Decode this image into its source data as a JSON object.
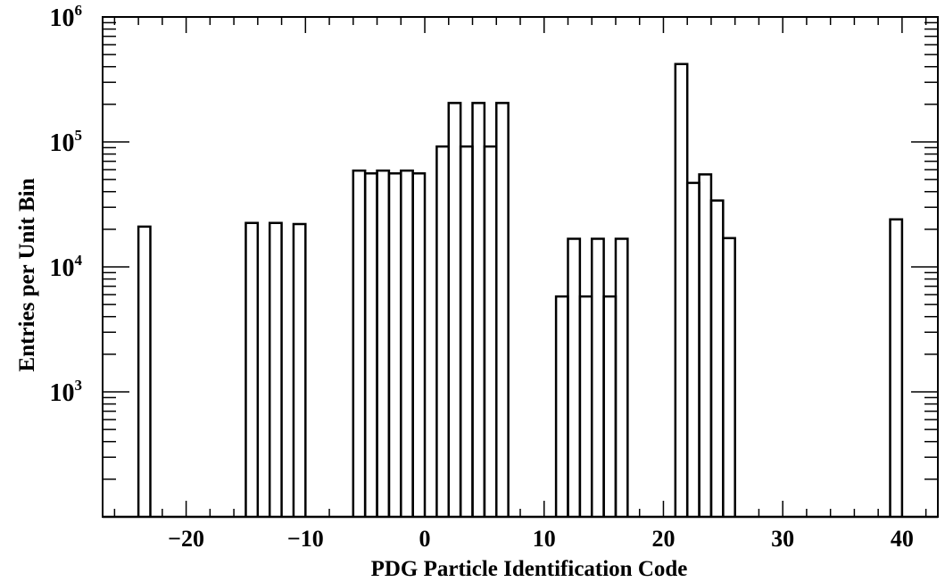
{
  "chart_data": {
    "type": "bar",
    "title": "",
    "xlabel": "PDG Particle Identification Code",
    "ylabel": "Entries per Unit Bin",
    "xlim": [
      -27,
      43
    ],
    "ylim": [
      100,
      1000000
    ],
    "yscale": "log",
    "grid": false,
    "legend": "none",
    "line_color": "#000000",
    "x_ticks": [
      {
        "value": -20,
        "label": "−20"
      },
      {
        "value": -10,
        "label": "−10"
      },
      {
        "value": 0,
        "label": "0"
      },
      {
        "value": 10,
        "label": "10"
      },
      {
        "value": 20,
        "label": "20"
      },
      {
        "value": 30,
        "label": "30"
      },
      {
        "value": 40,
        "label": "40"
      }
    ],
    "y_ticks": [
      {
        "value": 1000,
        "base": "10",
        "exp": "3"
      },
      {
        "value": 10000,
        "base": "10",
        "exp": "4"
      },
      {
        "value": 100000,
        "base": "10",
        "exp": "5"
      },
      {
        "value": 1000000,
        "base": "10",
        "exp": "6"
      }
    ],
    "bins": [
      {
        "x0": -24,
        "x1": -23,
        "value": 21000
      },
      {
        "x0": -15,
        "x1": -14,
        "value": 22500
      },
      {
        "x0": -13,
        "x1": -12,
        "value": 22500
      },
      {
        "x0": -11,
        "x1": -10,
        "value": 22000
      },
      {
        "x0": -6,
        "x1": -5,
        "value": 59000
      },
      {
        "x0": -5,
        "x1": -4,
        "value": 56000
      },
      {
        "x0": -4,
        "x1": -3,
        "value": 59000
      },
      {
        "x0": -3,
        "x1": -2,
        "value": 56000
      },
      {
        "x0": -2,
        "x1": -1,
        "value": 59000
      },
      {
        "x0": -1,
        "x1": 0,
        "value": 56000
      },
      {
        "x0": 1,
        "x1": 2,
        "value": 92000
      },
      {
        "x0": 2,
        "x1": 3,
        "value": 205000
      },
      {
        "x0": 3,
        "x1": 4,
        "value": 92000
      },
      {
        "x0": 4,
        "x1": 5,
        "value": 205000
      },
      {
        "x0": 5,
        "x1": 6,
        "value": 92000
      },
      {
        "x0": 6,
        "x1": 7,
        "value": 205000
      },
      {
        "x0": 11,
        "x1": 12,
        "value": 5800
      },
      {
        "x0": 12,
        "x1": 13,
        "value": 16800
      },
      {
        "x0": 13,
        "x1": 14,
        "value": 5800
      },
      {
        "x0": 14,
        "x1": 15,
        "value": 16800
      },
      {
        "x0": 15,
        "x1": 16,
        "value": 5800
      },
      {
        "x0": 16,
        "x1": 17,
        "value": 16800
      },
      {
        "x0": 21,
        "x1": 22,
        "value": 420000
      },
      {
        "x0": 22,
        "x1": 23,
        "value": 47000
      },
      {
        "x0": 23,
        "x1": 24,
        "value": 55000
      },
      {
        "x0": 24,
        "x1": 25,
        "value": 34000
      },
      {
        "x0": 25,
        "x1": 26,
        "value": 17000
      },
      {
        "x0": 39,
        "x1": 40,
        "value": 24000
      }
    ]
  }
}
